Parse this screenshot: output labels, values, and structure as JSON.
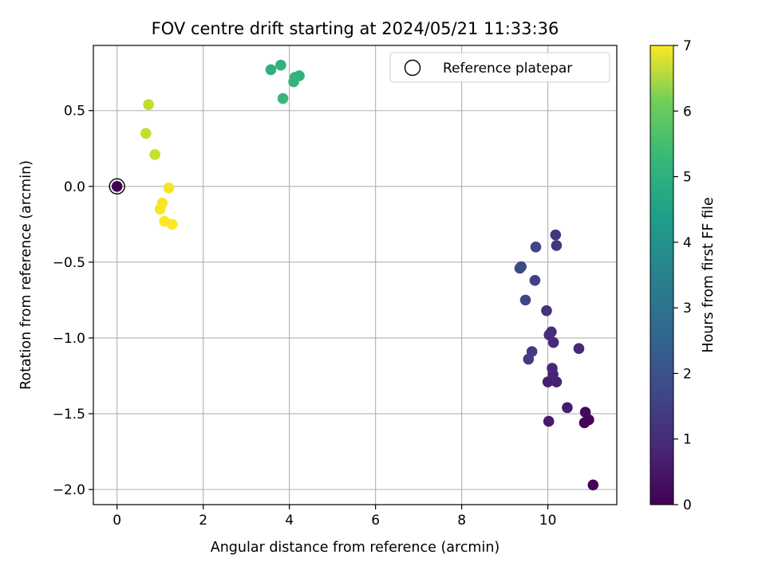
{
  "chart_data": {
    "type": "scatter",
    "title": "FOV centre drift starting at 2024/05/21 11:33:36",
    "xlabel": "Angular distance from reference (arcmin)",
    "ylabel": "Rotation from reference (arcmin)",
    "xlim": [
      -0.55,
      11.6
    ],
    "ylim": [
      -2.1,
      0.93
    ],
    "xticks": [
      0,
      2,
      4,
      6,
      8,
      10
    ],
    "xtick_labels": [
      "0",
      "2",
      "4",
      "6",
      "8",
      "10"
    ],
    "yticks": [
      0.5,
      0.0,
      -0.5,
      -1.0,
      -1.5,
      -2.0
    ],
    "ytick_labels": [
      "0.5",
      "0.0",
      "−0.5",
      "−1.0",
      "−1.5",
      "−2.0"
    ],
    "grid": true,
    "legend": {
      "position": "top-right",
      "entries": [
        "Reference platepar"
      ]
    },
    "colorbar": {
      "label": "Hours from first FF file",
      "range": [
        0,
        7
      ],
      "ticks": [
        0,
        1,
        2,
        3,
        4,
        5,
        6,
        7
      ],
      "tick_labels": [
        "0",
        "1",
        "2",
        "3",
        "4",
        "5",
        "6",
        "7"
      ],
      "colormap": "viridis"
    },
    "reference_point": {
      "x": 0.0,
      "y": 0.0
    },
    "points": [
      {
        "x": 11.05,
        "y": -1.97,
        "hours": 0.05
      },
      {
        "x": 10.85,
        "y": -1.56,
        "hours": 0.1
      },
      {
        "x": 10.95,
        "y": -1.54,
        "hours": 0.12
      },
      {
        "x": 10.87,
        "y": -1.49,
        "hours": 0.15
      },
      {
        "x": 0.0,
        "y": 0.0,
        "hours": 0.0
      },
      {
        "x": 10.02,
        "y": -1.55,
        "hours": 0.5
      },
      {
        "x": 10.45,
        "y": -1.46,
        "hours": 0.55
      },
      {
        "x": 10.0,
        "y": -1.29,
        "hours": 0.6
      },
      {
        "x": 10.2,
        "y": -1.29,
        "hours": 0.65
      },
      {
        "x": 10.12,
        "y": -1.24,
        "hours": 0.7
      },
      {
        "x": 10.1,
        "y": -1.2,
        "hours": 0.75
      },
      {
        "x": 10.72,
        "y": -1.07,
        "hours": 0.8
      },
      {
        "x": 10.13,
        "y": -1.03,
        "hours": 0.85
      },
      {
        "x": 10.03,
        "y": -0.98,
        "hours": 0.9
      },
      {
        "x": 10.08,
        "y": -0.96,
        "hours": 0.95
      },
      {
        "x": 9.97,
        "y": -0.82,
        "hours": 1.0
      },
      {
        "x": 10.18,
        "y": -0.32,
        "hours": 1.05
      },
      {
        "x": 10.2,
        "y": -0.39,
        "hours": 1.1
      },
      {
        "x": 9.63,
        "y": -1.09,
        "hours": 1.2
      },
      {
        "x": 9.55,
        "y": -1.14,
        "hours": 1.25
      },
      {
        "x": 9.7,
        "y": -0.62,
        "hours": 1.35
      },
      {
        "x": 9.72,
        "y": -0.4,
        "hours": 1.45
      },
      {
        "x": 9.48,
        "y": -0.75,
        "hours": 1.5
      },
      {
        "x": 9.35,
        "y": -0.54,
        "hours": 1.55
      },
      {
        "x": 9.38,
        "y": -0.53,
        "hours": 1.6
      },
      {
        "x": 3.57,
        "y": 0.77,
        "hours": 4.45
      },
      {
        "x": 3.8,
        "y": 0.8,
        "hours": 4.5
      },
      {
        "x": 4.23,
        "y": 0.73,
        "hours": 4.55
      },
      {
        "x": 4.13,
        "y": 0.72,
        "hours": 4.6
      },
      {
        "x": 4.1,
        "y": 0.69,
        "hours": 4.65
      },
      {
        "x": 3.85,
        "y": 0.58,
        "hours": 4.7
      },
      {
        "x": 0.73,
        "y": 0.54,
        "hours": 6.3
      },
      {
        "x": 0.67,
        "y": 0.35,
        "hours": 6.35
      },
      {
        "x": 0.88,
        "y": 0.21,
        "hours": 6.4
      },
      {
        "x": 1.2,
        "y": -0.01,
        "hours": 6.9
      },
      {
        "x": 1.05,
        "y": -0.11,
        "hours": 6.95
      },
      {
        "x": 1.0,
        "y": -0.15,
        "hours": 6.95
      },
      {
        "x": 1.1,
        "y": -0.23,
        "hours": 7.0
      },
      {
        "x": 1.28,
        "y": -0.25,
        "hours": 7.0
      }
    ]
  }
}
